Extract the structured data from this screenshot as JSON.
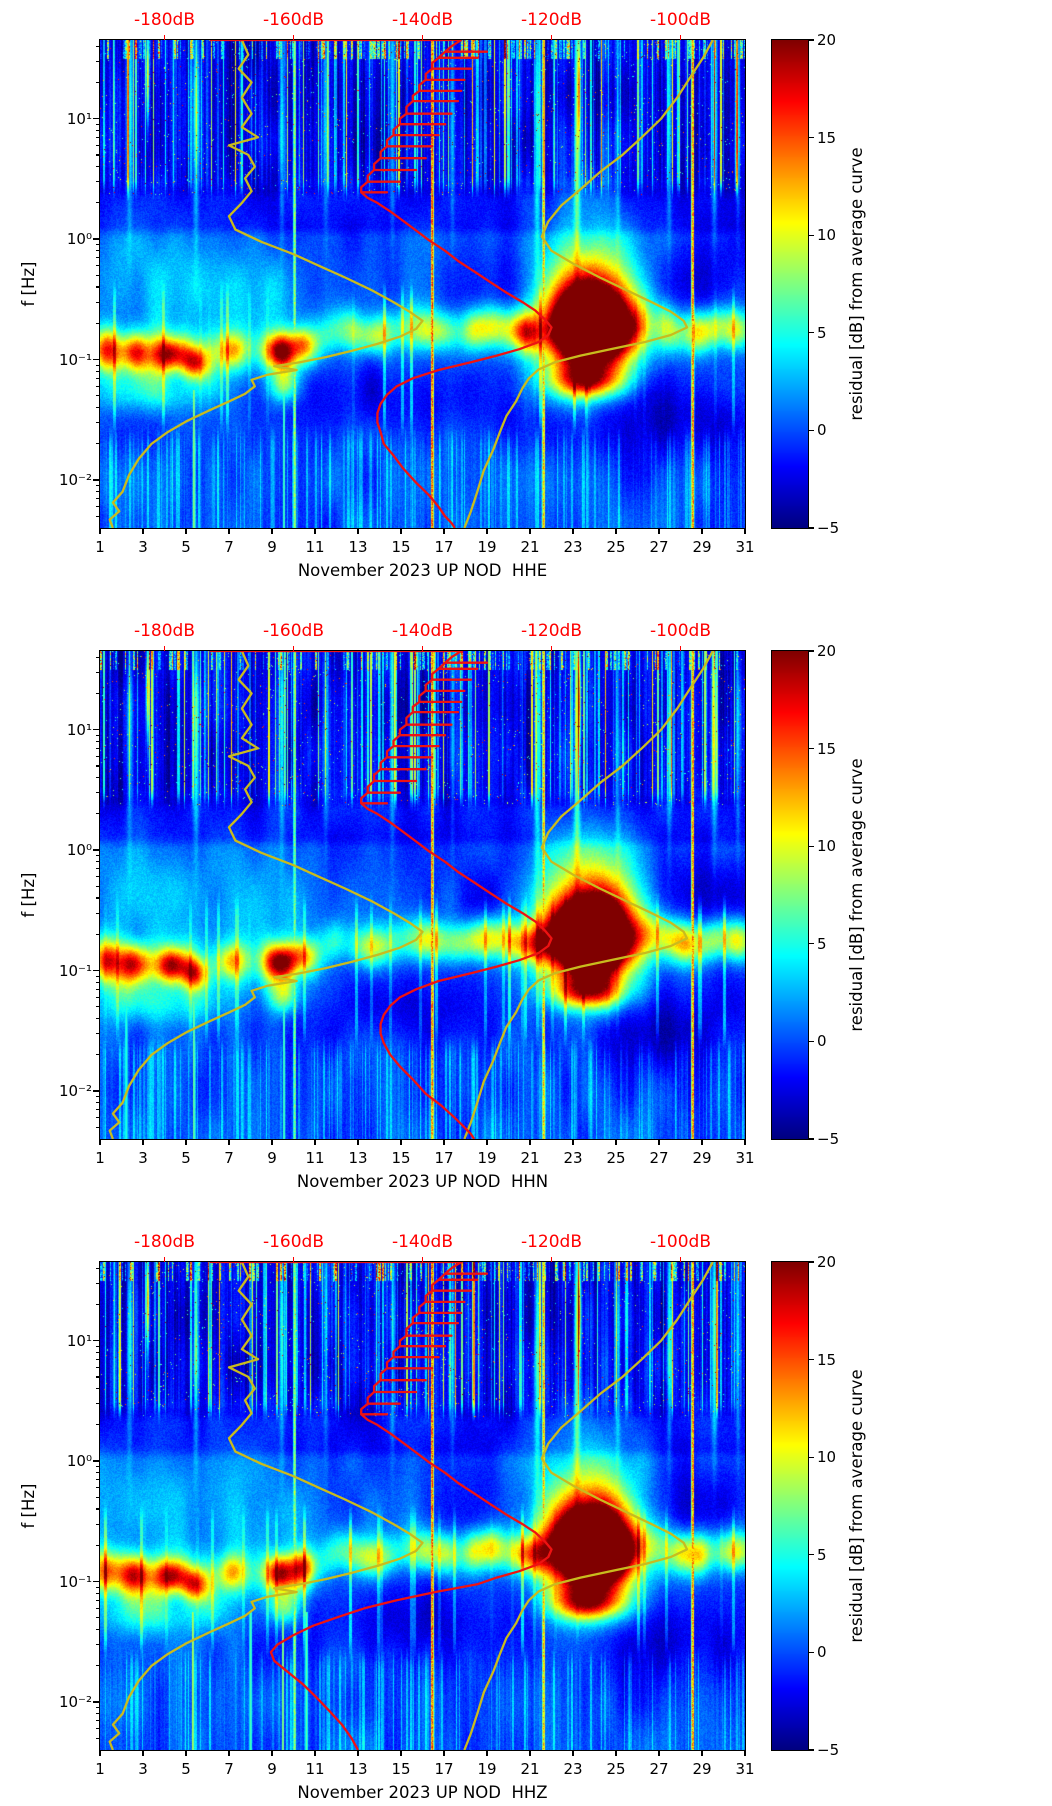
{
  "figure_title": "",
  "shared": {
    "ylabel": "f [Hz]",
    "y_range_hz": [
      0.004,
      45
    ],
    "y_decade_exponents": [
      1,
      0,
      -1,
      -2
    ],
    "y_tick_labels": [
      "10¹",
      "10⁰",
      "10⁻¹",
      "10⁻²"
    ],
    "x_ticks": [
      1,
      3,
      5,
      7,
      9,
      11,
      13,
      15,
      17,
      19,
      21,
      23,
      25,
      27,
      29,
      31
    ],
    "x_tick_labels": [
      "1",
      "3",
      "5",
      "7",
      "9",
      "11",
      "13",
      "15",
      "17",
      "19",
      "21",
      "23",
      "25",
      "27",
      "29",
      "31"
    ],
    "top_axis": {
      "labels": [
        "-180dB",
        "-160dB",
        "-140dB",
        "-120dB",
        "-100dB"
      ],
      "tick_db": [
        -180,
        -160,
        -140,
        -120,
        -100
      ],
      "db_range": [
        -190,
        -90
      ]
    },
    "colorbar": {
      "label": "residual [dB] from average curve",
      "range": [
        -5,
        20
      ],
      "ticks": [
        20,
        15,
        10,
        5,
        0,
        -5
      ],
      "tick_labels": [
        "20",
        "15",
        "10",
        "5",
        "0",
        "−5"
      ],
      "colormap": "jet"
    },
    "colors": {
      "average_curve": "#ee1212",
      "reference_curve": "#c9bb1e",
      "top_axis": "#ff0000",
      "axes": "#000000",
      "background": "#ffffff"
    },
    "curves": {
      "reference_low": [
        [
          45,
          -168
        ],
        [
          34,
          -167
        ],
        [
          26,
          -168.5
        ],
        [
          20,
          -166.5
        ],
        [
          15,
          -168
        ],
        [
          11,
          -166.5
        ],
        [
          8.5,
          -168
        ],
        [
          7,
          -165.5
        ],
        [
          6,
          -170
        ],
        [
          5,
          -167
        ],
        [
          4,
          -166
        ],
        [
          3.2,
          -167.5
        ],
        [
          2.5,
          -166.5
        ],
        [
          2.0,
          -168
        ],
        [
          1.55,
          -170
        ],
        [
          1.2,
          -169
        ],
        [
          0.95,
          -165
        ],
        [
          0.75,
          -160
        ],
        [
          0.6,
          -156
        ],
        [
          0.48,
          -152
        ],
        [
          0.38,
          -148
        ],
        [
          0.3,
          -144.5
        ],
        [
          0.25,
          -142
        ],
        [
          0.21,
          -140
        ],
        [
          0.18,
          -141
        ],
        [
          0.155,
          -143.5
        ],
        [
          0.135,
          -147
        ],
        [
          0.118,
          -151
        ],
        [
          0.105,
          -155
        ],
        [
          0.095,
          -159
        ],
        [
          0.088,
          -163
        ],
        [
          0.082,
          -159.5
        ],
        [
          0.075,
          -164
        ],
        [
          0.068,
          -166.5
        ],
        [
          0.06,
          -166
        ],
        [
          0.052,
          -167.5
        ],
        [
          0.045,
          -170
        ],
        [
          0.038,
          -173
        ],
        [
          0.031,
          -176.5
        ],
        [
          0.025,
          -179.5
        ],
        [
          0.02,
          -182
        ],
        [
          0.015,
          -184
        ],
        [
          0.011,
          -185.5
        ],
        [
          0.008,
          -186.5
        ],
        [
          0.0065,
          -188
        ],
        [
          0.0055,
          -187
        ],
        [
          0.0047,
          -188.5
        ],
        [
          0.004,
          -188
        ]
      ],
      "reference_high": [
        [
          45,
          -95
        ],
        [
          32,
          -96.5
        ],
        [
          22,
          -98.5
        ],
        [
          15,
          -100.5
        ],
        [
          10,
          -103
        ],
        [
          7,
          -106
        ],
        [
          5,
          -109
        ],
        [
          3.6,
          -112.5
        ],
        [
          2.6,
          -115.5
        ],
        [
          1.9,
          -118.5
        ],
        [
          1.4,
          -120.5
        ],
        [
          1.05,
          -121.5
        ],
        [
          0.8,
          -120
        ],
        [
          0.62,
          -116.5
        ],
        [
          0.48,
          -112.5
        ],
        [
          0.38,
          -108.5
        ],
        [
          0.3,
          -104.5
        ],
        [
          0.25,
          -101.5
        ],
        [
          0.21,
          -99.5
        ],
        [
          0.185,
          -99
        ],
        [
          0.16,
          -101.5
        ],
        [
          0.14,
          -105.5
        ],
        [
          0.123,
          -110.5
        ],
        [
          0.108,
          -115.5
        ],
        [
          0.095,
          -119.5
        ],
        [
          0.083,
          -122
        ],
        [
          0.07,
          -123.5
        ],
        [
          0.058,
          -124.5
        ],
        [
          0.045,
          -125.5
        ],
        [
          0.034,
          -127
        ],
        [
          0.025,
          -128
        ],
        [
          0.018,
          -129
        ],
        [
          0.012,
          -130.5
        ],
        [
          0.008,
          -131.5
        ],
        [
          0.0055,
          -132.5
        ],
        [
          0.004,
          -133.5
        ]
      ],
      "average_hf": [
        [
          45,
          -173
        ],
        [
          45,
          -134
        ],
        [
          40,
          -135.5
        ],
        [
          36,
          -136.5
        ],
        [
          36,
          -130
        ],
        [
          36,
          -136.5
        ],
        [
          32,
          -137.5
        ],
        [
          32,
          -131.5
        ],
        [
          32,
          -137.5
        ],
        [
          29,
          -138.5
        ],
        [
          26,
          -138.5
        ],
        [
          26,
          -132.5
        ],
        [
          26,
          -138.5
        ],
        [
          23.5,
          -139.5
        ],
        [
          21,
          -139.5
        ],
        [
          21,
          -133.5
        ],
        [
          21,
          -139.5
        ],
        [
          19,
          -140.5
        ],
        [
          17,
          -140.5
        ],
        [
          17,
          -134
        ],
        [
          17,
          -140.5
        ],
        [
          15.5,
          -141.5
        ],
        [
          14,
          -141.5
        ],
        [
          14,
          -134.5
        ],
        [
          14,
          -141.5
        ],
        [
          12.5,
          -142.5
        ],
        [
          11,
          -142.5
        ],
        [
          11,
          -135.5
        ],
        [
          11,
          -142.5
        ],
        [
          10,
          -143.5
        ],
        [
          9,
          -143.5
        ],
        [
          9,
          -136.5
        ],
        [
          9,
          -143.5
        ],
        [
          8.1,
          -144.5
        ],
        [
          7.3,
          -144.5
        ],
        [
          7.3,
          -137.5
        ],
        [
          7.3,
          -144.5
        ],
        [
          6.6,
          -145.5
        ],
        [
          5.9,
          -145.5
        ],
        [
          5.9,
          -138.5
        ],
        [
          5.9,
          -145.5
        ],
        [
          5.3,
          -146.5
        ],
        [
          4.7,
          -146.5
        ],
        [
          4.7,
          -139.5
        ],
        [
          4.7,
          -146.5
        ],
        [
          4.2,
          -147.5
        ],
        [
          3.75,
          -147.5
        ],
        [
          3.75,
          -141
        ],
        [
          3.75,
          -147.5
        ],
        [
          3.35,
          -148.5
        ],
        [
          3.0,
          -148.5
        ],
        [
          3.0,
          -143.5
        ],
        [
          3.0,
          -148.5
        ],
        [
          2.7,
          -149.5
        ],
        [
          2.45,
          -149.5
        ],
        [
          2.45,
          -145.5
        ],
        [
          2.45,
          -149.5
        ],
        [
          2.2,
          -148.5
        ],
        [
          2.0,
          -147
        ],
        [
          1.7,
          -145
        ],
        [
          1.42,
          -143
        ],
        [
          1.18,
          -141
        ],
        [
          0.98,
          -139
        ],
        [
          0.8,
          -136.5
        ],
        [
          0.66,
          -134.5
        ],
        [
          0.54,
          -132
        ],
        [
          0.44,
          -129.5
        ],
        [
          0.36,
          -127
        ],
        [
          0.3,
          -124.5
        ],
        [
          0.255,
          -122.5
        ],
        [
          0.215,
          -121
        ],
        [
          0.185,
          -120
        ],
        [
          0.16,
          -120.5
        ],
        [
          0.14,
          -122
        ],
        [
          0.122,
          -125
        ],
        [
          0.108,
          -128.5
        ]
      ]
    },
    "heat_features": [
      {
        "d": 23.9,
        "lf": -0.72,
        "sx": 1.3,
        "sy": 0.22,
        "a": 30
      },
      {
        "d": 23.8,
        "lf": -0.8,
        "sx": 1.5,
        "sy": 0.34,
        "a": 10
      },
      {
        "d": 23.7,
        "lf": -1.18,
        "sx": 1.15,
        "sy": 0.1,
        "a": 13
      },
      {
        "d": 23.9,
        "lf": -0.3,
        "sx": 1.6,
        "sy": 0.33,
        "a": 6
      },
      {
        "d": 23.9,
        "lf": -0.45,
        "sx": 2.1,
        "sy": 0.55,
        "a": 3
      },
      {
        "d": 1.3,
        "lf": -0.92,
        "sx": 0.45,
        "sy": 0.12,
        "a": 11
      },
      {
        "d": 2.6,
        "lf": -0.94,
        "sx": 0.5,
        "sy": 0.11,
        "a": 13
      },
      {
        "d": 4.3,
        "lf": -0.96,
        "sx": 0.55,
        "sy": 0.1,
        "a": 15
      },
      {
        "d": 5.4,
        "lf": -1.03,
        "sx": 0.4,
        "sy": 0.09,
        "a": 11
      },
      {
        "d": 7.1,
        "lf": -0.92,
        "sx": 0.5,
        "sy": 0.1,
        "a": 8
      },
      {
        "d": 9.35,
        "lf": -0.93,
        "sx": 0.5,
        "sy": 0.1,
        "a": 15
      },
      {
        "d": 10.4,
        "lf": -0.88,
        "sx": 0.4,
        "sy": 0.1,
        "a": 10
      },
      {
        "d": 13.6,
        "lf": -0.82,
        "sx": 0.8,
        "sy": 0.11,
        "a": 6
      },
      {
        "d": 16.2,
        "lf": -0.78,
        "sx": 0.7,
        "sy": 0.11,
        "a": 6
      },
      {
        "d": 18.9,
        "lf": -0.76,
        "sx": 0.9,
        "sy": 0.12,
        "a": 7
      },
      {
        "d": 20.9,
        "lf": -0.78,
        "sx": 0.6,
        "sy": 0.11,
        "a": 8
      },
      {
        "d": 28.4,
        "lf": -0.78,
        "sx": 0.9,
        "sy": 0.13,
        "a": 7
      },
      {
        "d": 30.6,
        "lf": -0.78,
        "sx": 0.5,
        "sy": 0.11,
        "a": 7
      },
      {
        "d": 3.8,
        "lf": -0.35,
        "sx": 2.3,
        "sy": 0.35,
        "a": 3
      },
      {
        "d": 8.6,
        "lf": -0.5,
        "sx": 1.4,
        "sy": 0.3,
        "a": 2.5
      },
      {
        "d": 3.5,
        "lf": -1.28,
        "sx": 2.3,
        "sy": 0.12,
        "a": 4.5
      },
      {
        "d": 9.55,
        "lf": -1.22,
        "sx": 0.5,
        "sy": 0.1,
        "a": 7
      },
      {
        "d": 15.2,
        "lf": -1.32,
        "sx": 3.8,
        "sy": 0.22,
        "a": -2.5
      },
      {
        "d": 27.0,
        "lf": -1.45,
        "sx": 3.0,
        "sy": 0.3,
        "a": -3.5
      },
      {
        "d": 28.6,
        "lf": -0.35,
        "sx": 2.4,
        "sy": 0.28,
        "a": -3
      },
      {
        "d": 19.5,
        "lf": -0.45,
        "sx": 1.5,
        "sy": 0.3,
        "a": -2
      },
      {
        "d": 2.35,
        "lf": 1.05,
        "sx": 0.09,
        "sy": 0.6,
        "a": 6
      },
      {
        "d": 5.45,
        "lf": 1.05,
        "sx": 0.09,
        "sy": 0.6,
        "a": 9
      },
      {
        "d": 9.45,
        "lf": 1.05,
        "sx": 0.08,
        "sy": 0.6,
        "a": 7
      },
      {
        "d": 11.5,
        "lf": 1.05,
        "sx": 0.08,
        "sy": 0.6,
        "a": 5
      },
      {
        "d": 14.6,
        "lf": 1.05,
        "sx": 0.08,
        "sy": 0.6,
        "a": 6
      },
      {
        "d": 17.4,
        "lf": 1.05,
        "sx": 0.07,
        "sy": 0.6,
        "a": 5
      },
      {
        "d": 21.35,
        "lf": 1.0,
        "sx": 0.1,
        "sy": 0.7,
        "a": 8
      },
      {
        "d": 23.2,
        "lf": 1.0,
        "sx": 0.1,
        "sy": 0.7,
        "a": 10
      },
      {
        "d": 25.1,
        "lf": 1.05,
        "sx": 0.08,
        "sy": 0.6,
        "a": 6
      },
      {
        "d": 27.5,
        "lf": 1.05,
        "sx": 0.08,
        "sy": 0.6,
        "a": 7
      },
      {
        "d": 29.6,
        "lf": 1.05,
        "sx": 0.09,
        "sy": 0.6,
        "a": 9
      },
      {
        "d": 30.7,
        "lf": 1.05,
        "sx": 0.07,
        "sy": 0.6,
        "a": 6
      },
      {
        "d": 3.2,
        "lf": 1.35,
        "sx": 0.05,
        "sy": 0.28,
        "a": 14
      },
      {
        "d": 23.3,
        "lf": 1.25,
        "sx": 0.05,
        "sy": 0.3,
        "a": 12
      }
    ]
  },
  "chart_data": [
    {
      "type": "heatmap",
      "channel": "HHE",
      "xlabel": "November 2023 UP NOD  HHE",
      "seed": 1,
      "red_vlines": [
        {
          "d": 10.05,
          "a": 9
        },
        {
          "d": 16.45,
          "a": 16
        },
        {
          "d": 21.65,
          "a": 13
        },
        {
          "d": 28.6,
          "a": 15
        }
      ],
      "low_vlines": [
        {
          "d": 5.35,
          "a": 9
        },
        {
          "d": 9.55,
          "a": 7
        }
      ],
      "red_curve_tail": [
        [
          0.095,
          -132.5
        ],
        [
          0.082,
          -137.5
        ],
        [
          0.07,
          -141.5
        ],
        [
          0.06,
          -144
        ],
        [
          0.051,
          -145.5
        ],
        [
          0.043,
          -146.5
        ],
        [
          0.036,
          -147
        ],
        [
          0.03,
          -147
        ],
        [
          0.025,
          -146.5
        ],
        [
          0.02,
          -146
        ],
        [
          0.016,
          -144.5
        ],
        [
          0.0125,
          -143
        ],
        [
          0.0095,
          -141
        ],
        [
          0.0075,
          -139
        ],
        [
          0.006,
          -137.5
        ],
        [
          0.005,
          -136.5
        ],
        [
          0.0044,
          -135.5
        ],
        [
          0.004,
          -135
        ]
      ]
    },
    {
      "type": "heatmap",
      "channel": "HHN",
      "xlabel": "November 2023 UP NOD  HHN",
      "seed": 2,
      "red_vlines": [
        {
          "d": 10.05,
          "a": 8
        },
        {
          "d": 16.45,
          "a": 15
        },
        {
          "d": 21.65,
          "a": 13
        },
        {
          "d": 28.6,
          "a": 15
        }
      ],
      "low_vlines": [
        {
          "d": 2.2,
          "a": 6
        },
        {
          "d": 5.35,
          "a": 8
        },
        {
          "d": 9.55,
          "a": 7
        }
      ],
      "red_curve_tail": [
        [
          0.095,
          -132.5
        ],
        [
          0.082,
          -137.5
        ],
        [
          0.07,
          -141
        ],
        [
          0.06,
          -143.5
        ],
        [
          0.051,
          -145
        ],
        [
          0.043,
          -146
        ],
        [
          0.036,
          -146.5
        ],
        [
          0.03,
          -146.5
        ],
        [
          0.025,
          -146
        ],
        [
          0.02,
          -145
        ],
        [
          0.016,
          -143.5
        ],
        [
          0.0125,
          -141.5
        ],
        [
          0.0095,
          -139.5
        ],
        [
          0.0075,
          -137
        ],
        [
          0.006,
          -135
        ],
        [
          0.005,
          -133.5
        ],
        [
          0.0044,
          -132.5
        ],
        [
          0.004,
          -132
        ]
      ]
    },
    {
      "type": "heatmap",
      "channel": "HHZ",
      "xlabel": "November 2023 UP NOD  HHZ",
      "seed": 3,
      "red_vlines": [
        {
          "d": 10.05,
          "a": 9
        },
        {
          "d": 16.45,
          "a": 16
        },
        {
          "d": 21.65,
          "a": 13
        },
        {
          "d": 28.6,
          "a": 15
        }
      ],
      "low_vlines": [
        {
          "d": 5.3,
          "a": 10
        },
        {
          "d": 8.0,
          "a": 7
        },
        {
          "d": 9.5,
          "a": 9
        },
        {
          "d": 10.6,
          "a": 7
        }
      ],
      "red_curve_tail": [
        [
          0.095,
          -131.5
        ],
        [
          0.082,
          -138
        ],
        [
          0.07,
          -144
        ],
        [
          0.06,
          -149
        ],
        [
          0.051,
          -153
        ],
        [
          0.043,
          -157
        ],
        [
          0.036,
          -160
        ],
        [
          0.03,
          -162.5
        ],
        [
          0.026,
          -163.5
        ],
        [
          0.022,
          -163
        ],
        [
          0.018,
          -161
        ],
        [
          0.014,
          -158.5
        ],
        [
          0.011,
          -156.5
        ],
        [
          0.0085,
          -154.5
        ],
        [
          0.0065,
          -152.5
        ],
        [
          0.005,
          -151
        ],
        [
          0.004,
          -150
        ]
      ]
    }
  ]
}
